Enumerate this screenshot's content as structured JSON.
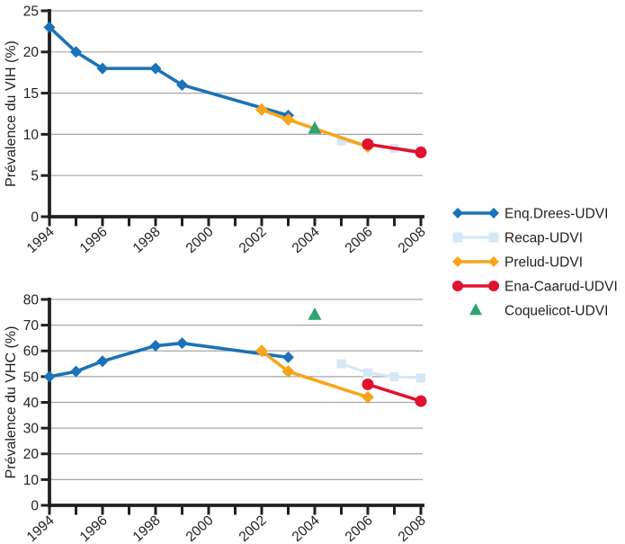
{
  "figure": {
    "background": "#ffffff"
  },
  "colors": {
    "axis": "#231F20",
    "text": "#231F20",
    "grid": "#A6A6A6",
    "enq_drees_blue": "#1B72B8",
    "recap_lightblue": "#D5E8F7",
    "prelud_orange": "#F8A51B",
    "ena_caarud_red": "#E1122E",
    "coquelicot_green": "#2FA374"
  },
  "legend": {
    "entries": [
      {
        "label": "Enq.Drees-UDVI",
        "color": "#1B72B8",
        "marker": "diamond",
        "line": true
      },
      {
        "label": "Recap-UDVI",
        "color": "#D5E8F7",
        "marker": "square",
        "line": true
      },
      {
        "label": "Prelud-UDVI",
        "color": "#F8A51B",
        "marker": "diamond",
        "line": true
      },
      {
        "label": "Ena-Caarud-UDVI",
        "color": "#E1122E",
        "marker": "circle",
        "line": true
      },
      {
        "label": "Coquelicot-UDVI",
        "color": "#2FA374",
        "marker": "triangle",
        "line": false
      }
    ]
  },
  "chart_data": [
    {
      "type": "line",
      "title": "",
      "xlabel": "",
      "ylabel": "Prévalence du VIH (%)",
      "xlim": [
        1994,
        2008
      ],
      "ylim": [
        0,
        25
      ],
      "yticks": [
        0,
        5,
        10,
        15,
        20,
        25
      ],
      "xticks": [
        1994,
        1995,
        1996,
        1997,
        1998,
        1999,
        2000,
        2001,
        2002,
        2003,
        2004,
        2005,
        2006,
        2007,
        2008
      ],
      "xtick_labels": [
        1994,
        1996,
        1998,
        2000,
        2002,
        2004,
        2006,
        2008
      ],
      "grid": true,
      "legend_position": "right",
      "series": [
        {
          "name": "Enq.Drees-UDVI",
          "color": "#1B72B8",
          "marker": "diamond",
          "marker_size": 6.5,
          "line_width": 3.6,
          "z": 2,
          "points": [
            [
              1994,
              23
            ],
            [
              1995,
              20
            ],
            [
              1996,
              18
            ],
            [
              1998,
              18
            ],
            [
              1999,
              16
            ],
            [
              2003,
              12.3
            ]
          ]
        },
        {
          "name": "Recap-UDVI",
          "color": "#D5E8F7",
          "marker": "square",
          "marker_size": 5.0,
          "line_width": 3.0,
          "z": 1,
          "points": [
            [
              2005,
              9.2
            ],
            [
              2006,
              8.7
            ],
            [
              2007,
              8.3
            ],
            [
              2008,
              8.1
            ]
          ]
        },
        {
          "name": "Prelud-UDVI",
          "color": "#F8A51B",
          "marker": "diamond",
          "marker_size": 7.0,
          "line_width": 3.6,
          "z": 3,
          "points": [
            [
              2002,
              13
            ],
            [
              2003,
              11.8
            ],
            [
              2006,
              8.5
            ]
          ]
        },
        {
          "name": "Ena-Caarud-UDVI",
          "color": "#E1122E",
          "marker": "circle",
          "marker_size": 6.5,
          "line_width": 3.6,
          "z": 4,
          "points": [
            [
              2006,
              8.8
            ],
            [
              2008,
              7.8
            ]
          ]
        },
        {
          "name": "Coquelicot-UDVI",
          "color": "#2FA374",
          "marker": "triangle",
          "marker_size": 7.5,
          "line_width": 0,
          "z": 5,
          "points": [
            [
              2004,
              10.7
            ]
          ]
        }
      ]
    },
    {
      "type": "line",
      "title": "",
      "xlabel": "",
      "ylabel": "Prévalence du VHC (%)",
      "xlim": [
        1994,
        2008
      ],
      "ylim": [
        0,
        80
      ],
      "yticks": [
        0,
        10,
        20,
        30,
        40,
        50,
        60,
        70,
        80
      ],
      "xticks": [
        1994,
        1995,
        1996,
        1997,
        1998,
        1999,
        2000,
        2001,
        2002,
        2003,
        2004,
        2005,
        2006,
        2007,
        2008
      ],
      "xtick_labels": [
        1994,
        1996,
        1998,
        2000,
        2002,
        2004,
        2006,
        2008
      ],
      "grid": true,
      "legend_position": "right",
      "series": [
        {
          "name": "Enq.Drees-UDVI",
          "color": "#1B72B8",
          "marker": "diamond",
          "marker_size": 6.5,
          "line_width": 3.6,
          "z": 2,
          "points": [
            [
              1994,
              50
            ],
            [
              1995,
              52
            ],
            [
              1996,
              56
            ],
            [
              1998,
              62
            ],
            [
              1999,
              63
            ],
            [
              2003,
              57.5
            ]
          ]
        },
        {
          "name": "Recap-UDVI",
          "color": "#D5E8F7",
          "marker": "square",
          "marker_size": 5.0,
          "line_width": 3.0,
          "z": 1,
          "points": [
            [
              2005,
              55
            ],
            [
              2006,
              51.5
            ],
            [
              2007,
              50
            ],
            [
              2008,
              49.5
            ]
          ]
        },
        {
          "name": "Prelud-UDVI",
          "color": "#F8A51B",
          "marker": "diamond",
          "marker_size": 7.0,
          "line_width": 3.6,
          "z": 3,
          "points": [
            [
              2002,
              60
            ],
            [
              2003,
              52
            ],
            [
              2006,
              42
            ]
          ]
        },
        {
          "name": "Ena-Caarud-UDVI",
          "color": "#E1122E",
          "marker": "circle",
          "marker_size": 6.5,
          "line_width": 3.6,
          "z": 4,
          "points": [
            [
              2006,
              47
            ],
            [
              2008,
              40.5
            ]
          ]
        },
        {
          "name": "Coquelicot-UDVI",
          "color": "#2FA374",
          "marker": "triangle",
          "marker_size": 7.5,
          "line_width": 0,
          "z": 5,
          "points": [
            [
              2004,
              74
            ]
          ]
        }
      ]
    }
  ]
}
